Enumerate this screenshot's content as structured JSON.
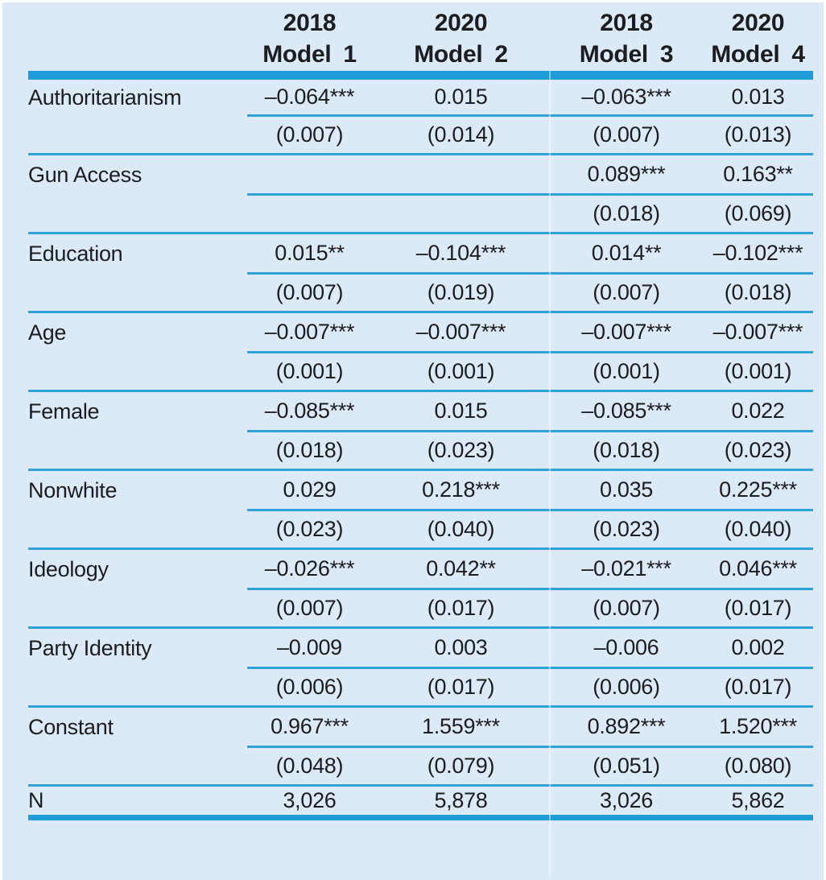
{
  "table": {
    "columns": [
      {
        "year": "2018",
        "model": "Model 1"
      },
      {
        "year": "2020",
        "model": "Model 2"
      },
      {
        "year": "2018",
        "model": "Model 3"
      },
      {
        "year": "2020",
        "model": "Model 4"
      }
    ],
    "rows": [
      {
        "label": "Authoritarianism",
        "coefs": [
          "–0.064***",
          "0.015",
          "–0.063***",
          "0.013"
        ],
        "ses": [
          "(0.007)",
          "(0.014)",
          "(0.007)",
          "(0.013)"
        ]
      },
      {
        "label": "Gun Access",
        "coefs": [
          "",
          "",
          "0.089***",
          "0.163**"
        ],
        "ses": [
          "",
          "",
          "(0.018)",
          "(0.069)"
        ]
      },
      {
        "label": "Education",
        "coefs": [
          "0.015**",
          "–0.104***",
          "0.014**",
          "–0.102***"
        ],
        "ses": [
          "(0.007)",
          "(0.019)",
          "(0.007)",
          "(0.018)"
        ]
      },
      {
        "label": "Age",
        "coefs": [
          "–0.007***",
          "–0.007***",
          "–0.007***",
          "–0.007***"
        ],
        "ses": [
          "(0.001)",
          "(0.001)",
          "(0.001)",
          "(0.001)"
        ]
      },
      {
        "label": "Female",
        "coefs": [
          "–0.085***",
          "0.015",
          "–0.085***",
          "0.022"
        ],
        "ses": [
          "(0.018)",
          "(0.023)",
          "(0.018)",
          "(0.023)"
        ]
      },
      {
        "label": "Nonwhite",
        "coefs": [
          "0.029",
          "0.218***",
          "0.035",
          "0.225***"
        ],
        "ses": [
          "(0.023)",
          "(0.040)",
          "(0.023)",
          "(0.040)"
        ]
      },
      {
        "label": "Ideology",
        "coefs": [
          "–0.026***",
          "0.042**",
          "–0.021***",
          "0.046***"
        ],
        "ses": [
          "(0.007)",
          "(0.017)",
          "(0.007)",
          "(0.017)"
        ]
      },
      {
        "label": "Party Identity",
        "coefs": [
          "–0.009",
          "0.003",
          "–0.006",
          "0.002"
        ],
        "ses": [
          "(0.006)",
          "(0.017)",
          "(0.006)",
          "(0.017)"
        ]
      },
      {
        "label": "Constant",
        "coefs": [
          "0.967***",
          "1.559***",
          "0.892***",
          "1.520***"
        ],
        "ses": [
          "(0.048)",
          "(0.079)",
          "(0.051)",
          "(0.080)"
        ]
      }
    ],
    "footer": {
      "label": "N",
      "values": [
        "3,026",
        "5,878",
        "3,026",
        "5,862"
      ]
    }
  },
  "colors": {
    "background": "#dce9f6",
    "rule_thick": "#1e9cd8",
    "rule_thin": "#2fa3d9",
    "text": "#1c1d20"
  }
}
